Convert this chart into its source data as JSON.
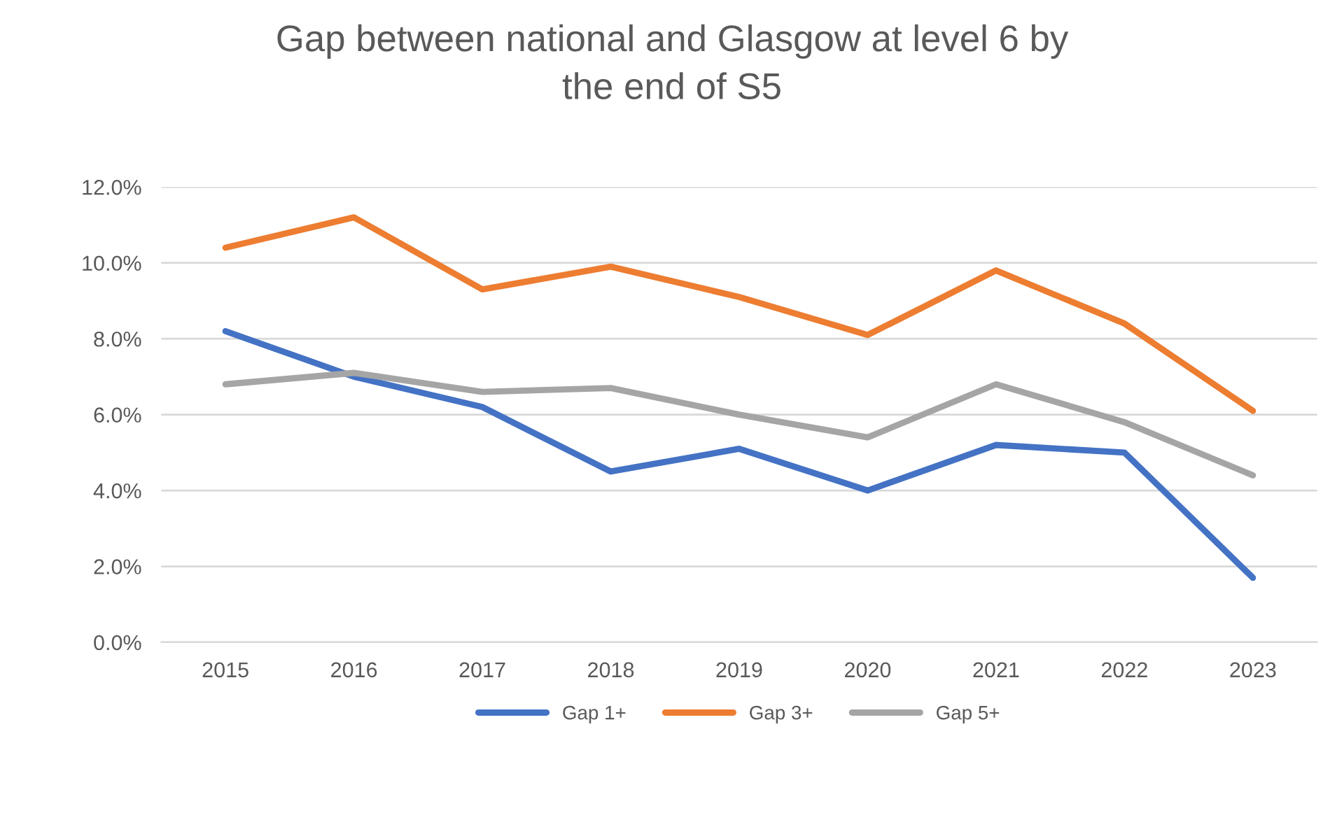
{
  "chart_data": {
    "type": "line",
    "title": "Gap between national and Glasgow at level 6 by\nthe end of S5",
    "categories": [
      "2015",
      "2016",
      "2017",
      "2018",
      "2019",
      "2020",
      "2021",
      "2022",
      "2023"
    ],
    "series": [
      {
        "name": "Gap 1+",
        "color": "#4472c4",
        "values": [
          8.2,
          7.0,
          6.2,
          4.5,
          5.1,
          4.0,
          5.2,
          5.0,
          1.7
        ]
      },
      {
        "name": "Gap 3+",
        "color": "#ed7d31",
        "values": [
          10.4,
          11.2,
          9.3,
          9.9,
          9.1,
          8.1,
          9.8,
          8.4,
          6.1
        ]
      },
      {
        "name": "Gap 5+",
        "color": "#a5a5a5",
        "values": [
          6.8,
          7.1,
          6.6,
          6.7,
          6.0,
          5.4,
          6.8,
          5.8,
          4.4
        ]
      }
    ],
    "ylim": [
      0,
      12
    ],
    "yticks": [
      {
        "value": 0,
        "label": "0.0%"
      },
      {
        "value": 2,
        "label": "2.0%"
      },
      {
        "value": 4,
        "label": "4.0%"
      },
      {
        "value": 6,
        "label": "6.0%"
      },
      {
        "value": 8,
        "label": "8.0%"
      },
      {
        "value": 10,
        "label": "10.0%"
      },
      {
        "value": 12,
        "label": "12.0%"
      }
    ],
    "grid": "y",
    "legend": "bottom",
    "marker": "none",
    "line_style": "solid"
  }
}
